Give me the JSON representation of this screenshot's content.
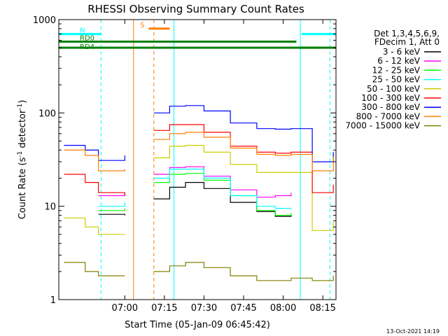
{
  "chart_data": {
    "type": "line",
    "title": "RHESSI Observing Summary Count Rates",
    "xlabel": "Start Time (05-Jan-09 06:45:42)",
    "ylabel_main": "Count Rate (s",
    "ylabel_sup1": "-1",
    "ylabel_mid": " detector",
    "ylabel_sup2": "-1",
    "ylabel_end": ")",
    "ylog": true,
    "ylim": [
      1,
      1000
    ],
    "xlim_min": [
      -10,
      95
    ],
    "x_ticks": [
      {
        "min": 15,
        "label": "07:00"
      },
      {
        "min": 30,
        "label": "07:15"
      },
      {
        "min": 45,
        "label": "07:30"
      },
      {
        "min": 60,
        "label": "07:45"
      },
      {
        "min": 75,
        "label": "08:00"
      },
      {
        "min": 90,
        "label": "08:15"
      }
    ],
    "y_ticks": [
      {
        "value": 1,
        "label": "1"
      },
      {
        "value": 10,
        "label": "10"
      },
      {
        "value": 100,
        "label": "100"
      },
      {
        "value": 1000,
        "label": "1000"
      }
    ],
    "legend_header": [
      "Det 1,3,4,5,6,9,",
      "FDecim 1, Att 0"
    ],
    "date_stamp": "13-Oct-2021 14:19",
    "series": [
      {
        "name": "3 - 6 keV",
        "color": "#000000",
        "values": [
          null,
          null,
          8.2,
          8.0,
          null,
          12,
          16,
          18,
          15.5,
          11,
          8.8,
          7.8,
          8.0,
          null,
          null
        ]
      },
      {
        "name": "6 - 12 keV",
        "color": "#ff00ff",
        "values": [
          null,
          null,
          13,
          14,
          null,
          22,
          26,
          26.5,
          21,
          15,
          12.5,
          13,
          14,
          null,
          null
        ]
      },
      {
        "name": "12 - 25 keV",
        "color": "#00ff00",
        "values": [
          null,
          null,
          9,
          9.5,
          null,
          18,
          22,
          22.5,
          19,
          13,
          9,
          8,
          8.5,
          null,
          null
        ]
      },
      {
        "name": "25 - 50 keV",
        "color": "#00ffff",
        "values": [
          null,
          null,
          10,
          11,
          null,
          20,
          25,
          25,
          20,
          13,
          10,
          9.5,
          9.6,
          null,
          null
        ]
      },
      {
        "name": "50 - 100 keV",
        "color": "#cccc00",
        "values": [
          7.5,
          6.0,
          5,
          5,
          null,
          33,
          44,
          45,
          38,
          28,
          23,
          23,
          23,
          5.5,
          6.8
        ]
      },
      {
        "name": "100 - 300 keV",
        "color": "#ff0000",
        "values": [
          22,
          18,
          14,
          13,
          null,
          65,
          75,
          75,
          62,
          44,
          38,
          37,
          38,
          14,
          17
        ]
      },
      {
        "name": "300 - 800 keV",
        "color": "#0000ff",
        "values": [
          45,
          40,
          31,
          35,
          null,
          100,
          118,
          120,
          105,
          78,
          68,
          67,
          68,
          30,
          38
        ]
      },
      {
        "name": "800 - 7000 keV",
        "color": "#ff8000",
        "values": [
          40,
          35,
          24,
          25,
          null,
          52,
          60,
          62,
          55,
          42,
          36,
          35,
          36,
          24,
          34
        ]
      },
      {
        "name": "7000 - 15000 keV",
        "color": "#808000",
        "values": [
          2.5,
          2.0,
          1.8,
          1.8,
          null,
          2.0,
          2.3,
          2.5,
          2.2,
          1.8,
          1.6,
          1.6,
          1.7,
          1.6,
          1.8
        ]
      }
    ],
    "x_minutes": [
      -8,
      0,
      5,
      15,
      20,
      26,
      32,
      38,
      45,
      55,
      65,
      72,
      78,
      86,
      94
    ],
    "flags": [
      {
        "name": "N",
        "color": "#00ffff",
        "value": 700,
        "segments": [
          [
            -10,
            6
          ],
          [
            82,
            95
          ]
        ]
      },
      {
        "name": "S",
        "color": "#ff8000",
        "value": 800,
        "segments": [
          [
            24,
            32
          ]
        ]
      },
      {
        "name": "RD0",
        "color": "#008000",
        "value": 580,
        "segments": [
          [
            -10,
            80
          ]
        ]
      },
      {
        "name": "RD4",
        "color": "#008000",
        "value": 500,
        "segments": [
          [
            -10,
            89
          ],
          [
            81,
            95
          ]
        ]
      }
    ],
    "vlines": [
      {
        "min": 6,
        "color": "#00ffff",
        "dashed": true
      },
      {
        "min": 18.3,
        "color": "#ff8000",
        "dashed": false
      },
      {
        "min": 26,
        "color": "#ff8000",
        "dashed": true
      },
      {
        "min": 33.6,
        "color": "#00ffff",
        "dashed": false
      },
      {
        "min": 81.5,
        "color": "#00ffff",
        "dashed": false
      },
      {
        "min": 92.7,
        "color": "#00ffff",
        "dashed": true
      }
    ],
    "grid": false,
    "legend_placement": "right"
  }
}
